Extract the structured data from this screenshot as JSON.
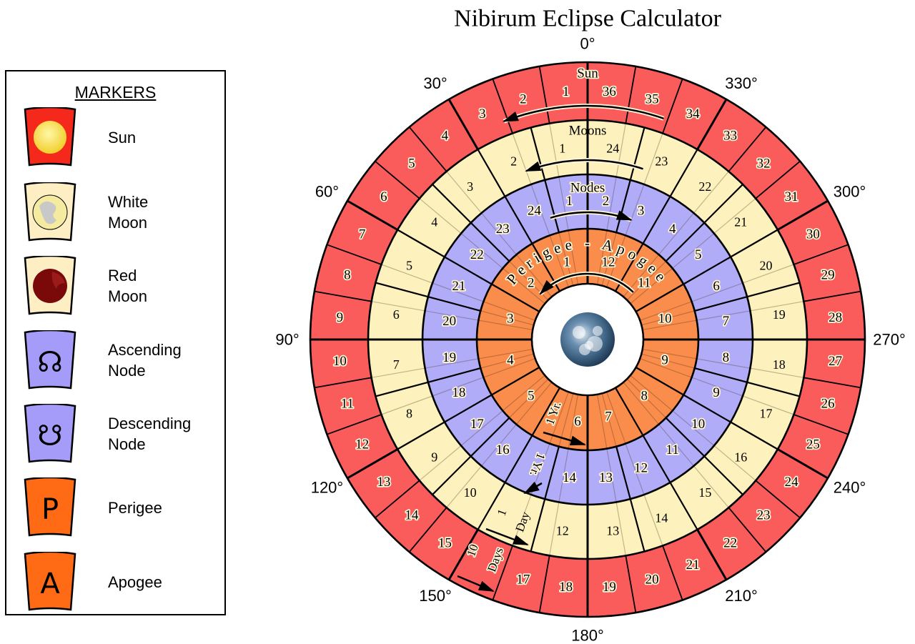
{
  "title": "Nibirum Eclipse Calculator",
  "degree_labels": [
    "0°",
    "30°",
    "60°",
    "90°",
    "120°",
    "150°",
    "180°",
    "210°",
    "240°",
    "270°",
    "300°",
    "330°"
  ],
  "colors": {
    "sun_ring": "#fa5c5c",
    "moon_ring": "#fdf1bd",
    "node_ring": "#b1acf8",
    "apsis_ring": "#fb8d4c",
    "legend_sun": "#f5281c",
    "legend_apsis": "#ff6a14"
  },
  "rings": {
    "sun": {
      "label": "Sun",
      "segments": [
        "1",
        "2",
        "3",
        "4",
        "5",
        "6",
        "7",
        "8",
        "9",
        "10",
        "11",
        "12",
        "13",
        "14",
        "15",
        "",
        "17",
        "18",
        "19",
        "20",
        "21",
        "22",
        "23",
        "24",
        "25",
        "26",
        "27",
        "28",
        "29",
        "30",
        "31",
        "32",
        "33",
        "34",
        "35",
        "36"
      ],
      "note_top": "10",
      "note_bottom": "Days"
    },
    "moons": {
      "label": "Moons",
      "segments": [
        "1",
        "2",
        "3",
        "4",
        "5",
        "6",
        "7",
        "8",
        "9",
        "10",
        "",
        "12",
        "13",
        "14",
        "15",
        "16",
        "17",
        "18",
        "19",
        "20",
        "21",
        "22",
        "23",
        "24"
      ],
      "note_top": "1",
      "note_bottom": "Day"
    },
    "nodes": {
      "label": "Nodes",
      "segments": [
        "1",
        "2",
        "3",
        "4",
        "5",
        "6",
        "7",
        "8",
        "9",
        "10",
        "11",
        "12",
        "13",
        "14",
        "",
        "16",
        "17",
        "18",
        "19",
        "20",
        "21",
        "22",
        "23",
        "24"
      ],
      "note": "1 Yr."
    },
    "apsis": {
      "label": "Perigee - Apogee",
      "segments": [
        "1",
        "2",
        "3",
        "4",
        "5",
        "6",
        "7",
        "8",
        "9",
        "10",
        "11",
        "12"
      ],
      "note": "1 Yr."
    }
  },
  "legend": {
    "title": "MARKERS",
    "items": [
      {
        "label": "Sun",
        "icon": "sun-icon"
      },
      {
        "label": "White\nMoon",
        "icon": "white-moon-icon"
      },
      {
        "label": "Red\nMoon",
        "icon": "red-moon-icon"
      },
      {
        "label": "Ascending\nNode",
        "icon": "ascending-node-icon",
        "glyph": "☊"
      },
      {
        "label": "Descending\nNode",
        "icon": "descending-node-icon",
        "glyph": "☋"
      },
      {
        "label": "Perigee",
        "icon": "perigee-icon",
        "glyph": "P"
      },
      {
        "label": "Apogee",
        "icon": "apogee-icon",
        "glyph": "A"
      }
    ]
  }
}
